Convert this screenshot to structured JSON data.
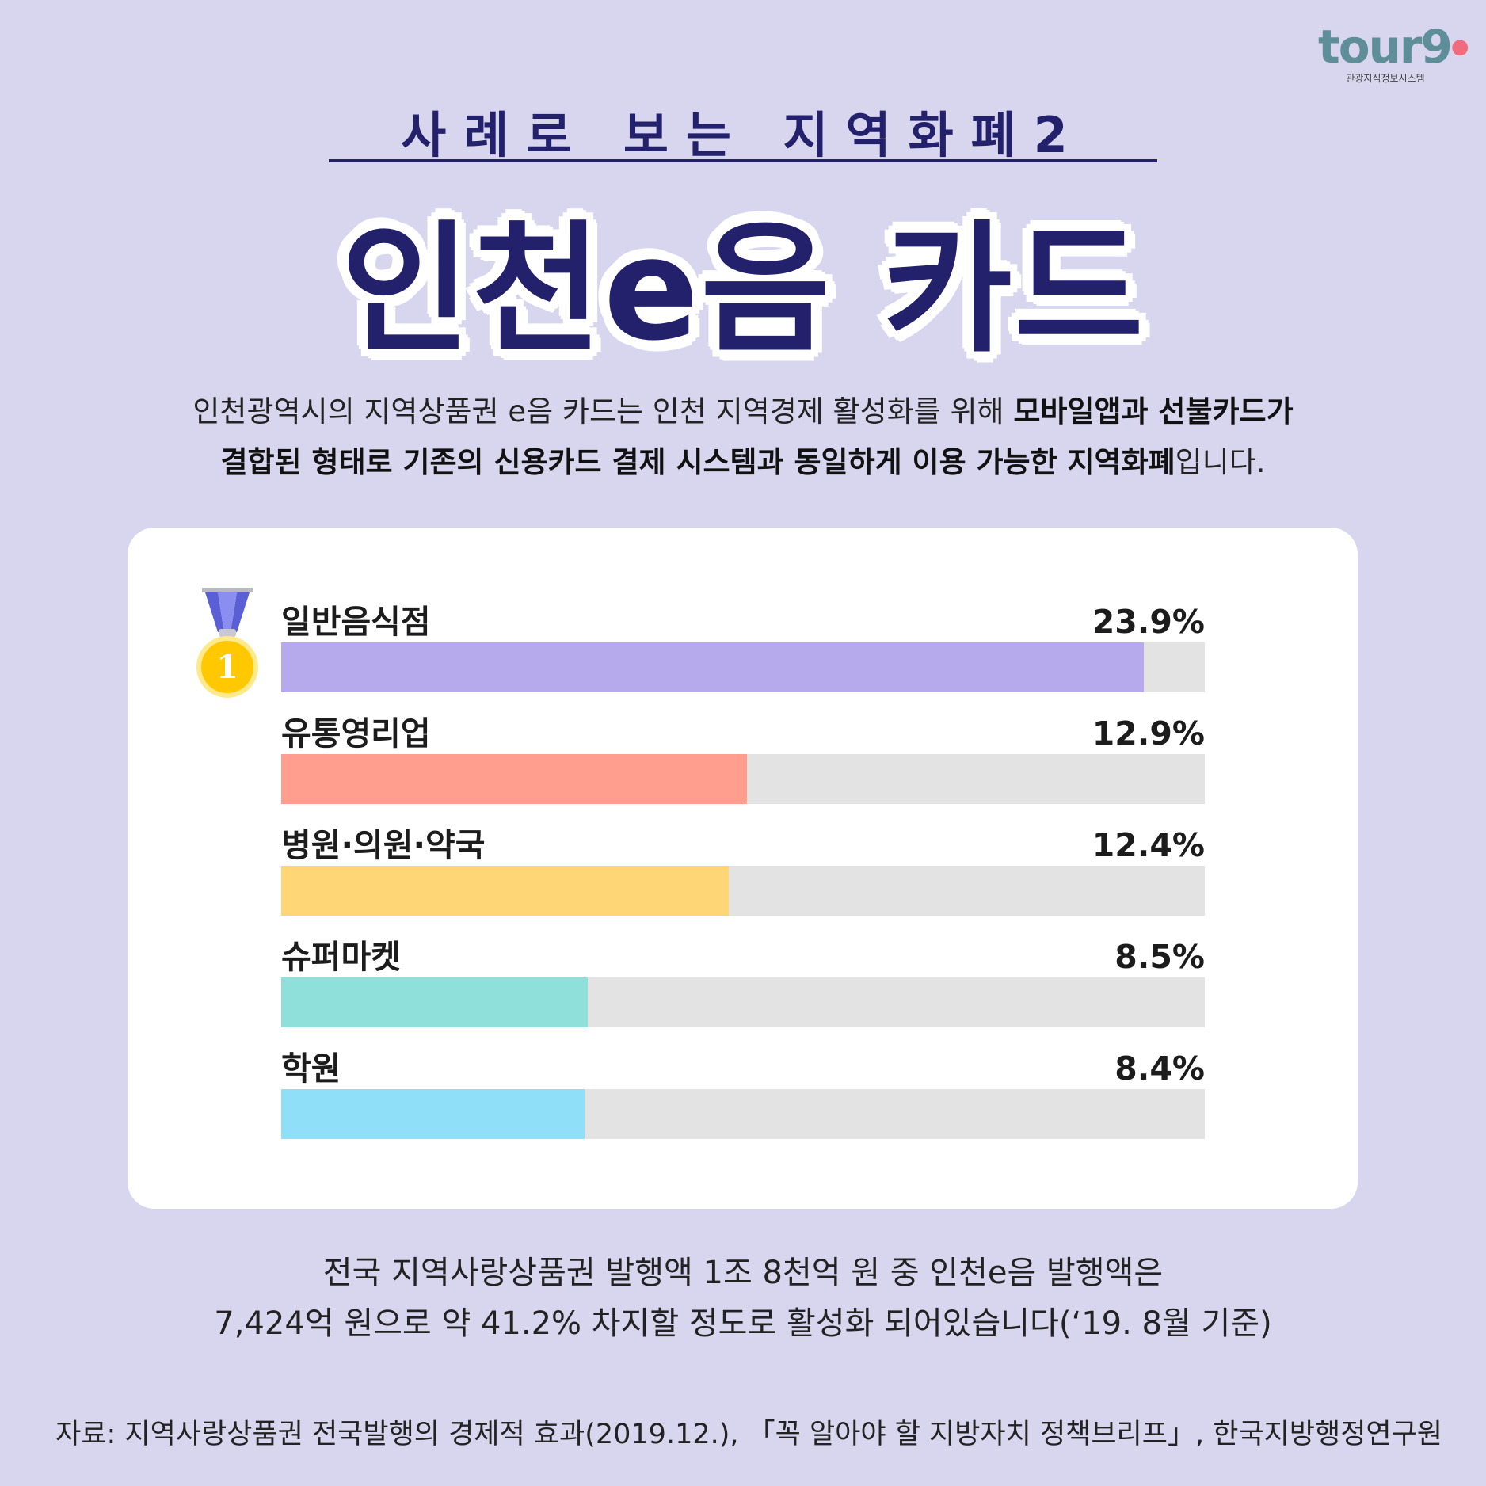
{
  "logo": {
    "word": "tour9",
    "pin": "●",
    "sub": "관광지식정보시스템"
  },
  "header": {
    "subtitle": "사례로 보는 지역화폐2",
    "title": "인천e음 카드"
  },
  "intro": {
    "line1_regular": "인천광역시의 지역상품권 e음 카드는 인천 지역경제 활성화를 위해 ",
    "line1_bold": "모바일앱과 선불카드가",
    "line2_bold": "결합된 형태로 기존의 신용카드 결제 시스템과 동일하게 이용 가능한 지역화폐",
    "line2_regular": "입니다."
  },
  "medal": {
    "number": "1",
    "color": "#ffc800"
  },
  "chart_data": {
    "type": "bar",
    "orientation": "horizontal",
    "categories": [
      "일반음식점",
      "유통영리업",
      "병원·의원·약국",
      "슈퍼마켓",
      "학원"
    ],
    "values": [
      23.9,
      12.9,
      12.4,
      8.5,
      8.4
    ],
    "value_labels": [
      "23.9%",
      "12.9%",
      "12.4%",
      "8.5%",
      "8.4%"
    ],
    "colors": [
      "#b7aaec",
      "#ff9d8e",
      "#ffd676",
      "#8fe0da",
      "#8fdff8"
    ],
    "track_color": "#e3e3e3",
    "xlim": [
      0,
      25.6
    ]
  },
  "stat": {
    "line1": "전국 지역사랑상품권 발행액 1조 8천억 원 중 인천e음 발행액은",
    "line2": "7,424억 원으로 약 41.2% 차지할 정도로 활성화 되어있습니다(‘19. 8월 기준)"
  },
  "source": "자료: 지역사랑상품권 전국발행의 경제적 효과(2019.12.), 「꼭 알아야 할 지방자치 정책브리프」, 한국지방행정연구원"
}
